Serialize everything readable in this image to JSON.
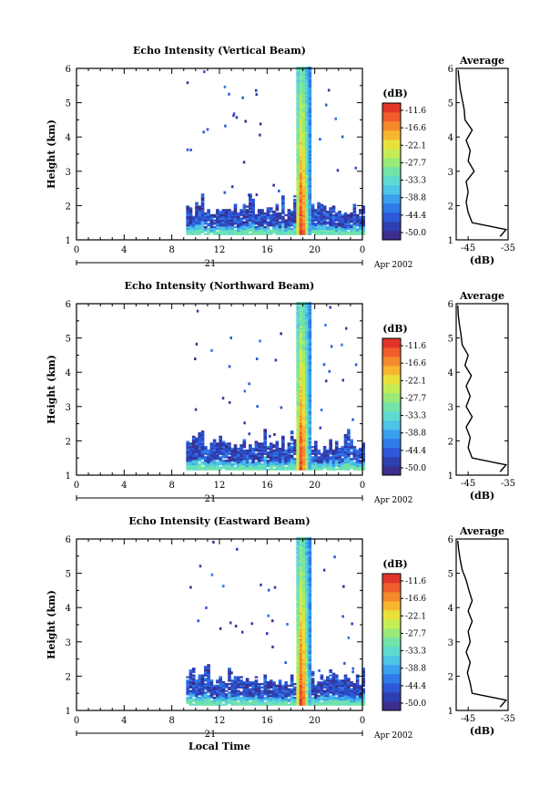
{
  "chart_data": [
    {
      "type": "heatmap",
      "title": "Echo Intensity (Vertical Beam)",
      "ylabel": "Height (km)",
      "xlabel": "",
      "x_ticks": [
        "0",
        "4",
        "8",
        "12",
        "16",
        "20",
        "0"
      ],
      "y_ticks": [
        "1",
        "2",
        "3",
        "4",
        "5",
        "6"
      ],
      "xlim": [
        0,
        24
      ],
      "ylim": [
        1,
        6
      ],
      "date_bar_label": "21",
      "date_label": "Apr 2002",
      "colorbar_title": "(dB)",
      "colorbar_ticks": [
        "-11.6",
        "-16.6",
        "-22.1",
        "-27.7",
        "-33.3",
        "-38.8",
        "-44.4",
        "-50.0"
      ],
      "data_start_hour": 9.2,
      "data_end_hour": 24,
      "layer_top_km": 1.85,
      "convective_cell_hours": [
        18.3,
        19.5
      ],
      "average_profile": {
        "title": "Average",
        "xlabel": "(dB)",
        "x_ticks": [
          "-45",
          "-35"
        ],
        "xlim": [
          -48,
          -35
        ],
        "heights": [
          1.1,
          1.3,
          1.5,
          1.8,
          2.1,
          2.4,
          2.7,
          3.0,
          3.3,
          3.6,
          3.9,
          4.2,
          4.5,
          4.8,
          5.1,
          5.4,
          5.7,
          5.95
        ],
        "values": [
          -37,
          -35.5,
          -44,
          -45,
          -45.5,
          -45,
          -45.5,
          -43.5,
          -45,
          -44.5,
          -45.5,
          -44,
          -45.8,
          -46,
          -46.5,
          -47,
          -47.3,
          -47.5
        ]
      }
    },
    {
      "type": "heatmap",
      "title": "Echo Intensity (Northward Beam)",
      "ylabel": "Height (km)",
      "xlabel": "",
      "x_ticks": [
        "0",
        "4",
        "8",
        "12",
        "16",
        "20",
        "0"
      ],
      "y_ticks": [
        "1",
        "2",
        "3",
        "4",
        "5",
        "6"
      ],
      "xlim": [
        0,
        24
      ],
      "ylim": [
        1,
        6
      ],
      "date_bar_label": "21",
      "date_label": "Apr 2002",
      "colorbar_title": "(dB)",
      "colorbar_ticks": [
        "-11.6",
        "-16.6",
        "-22.1",
        "-27.7",
        "-33.3",
        "-38.8",
        "-44.4",
        "-50.0"
      ],
      "data_start_hour": 9.2,
      "data_end_hour": 24,
      "layer_top_km": 1.85,
      "convective_cell_hours": [
        18.3,
        19.5
      ],
      "average_profile": {
        "title": "Average",
        "xlabel": "(dB)",
        "x_ticks": [
          "-45",
          "-35"
        ],
        "xlim": [
          -48,
          -35
        ],
        "heights": [
          1.1,
          1.3,
          1.5,
          1.8,
          2.1,
          2.4,
          2.7,
          3.0,
          3.3,
          3.6,
          3.9,
          4.2,
          4.5,
          4.8,
          5.1,
          5.4,
          5.7,
          5.95
        ],
        "values": [
          -37,
          -35.5,
          -44,
          -45,
          -44.5,
          -45.5,
          -44,
          -45.5,
          -44.5,
          -45.5,
          -44.2,
          -45.8,
          -45,
          -46.5,
          -46.8,
          -47.2,
          -47.5,
          -47.6
        ]
      }
    },
    {
      "type": "heatmap",
      "title": "Echo Intensity (Eastward Beam)",
      "ylabel": "Height (km)",
      "xlabel": "Local Time",
      "x_ticks": [
        "0",
        "4",
        "8",
        "12",
        "16",
        "20",
        "0"
      ],
      "y_ticks": [
        "1",
        "2",
        "3",
        "4",
        "5",
        "6"
      ],
      "xlim": [
        0,
        24
      ],
      "ylim": [
        1,
        6
      ],
      "date_bar_label": "21",
      "date_label": "Apr 2002",
      "colorbar_title": "(dB)",
      "colorbar_ticks": [
        "-11.6",
        "-16.6",
        "-22.1",
        "-27.7",
        "-33.3",
        "-38.8",
        "-44.4",
        "-50.0"
      ],
      "data_start_hour": 9.2,
      "data_end_hour": 24,
      "layer_top_km": 1.85,
      "convective_cell_hours": [
        18.3,
        19.5
      ],
      "average_profile": {
        "title": "Average",
        "xlabel": "(dB)",
        "x_ticks": [
          "-45",
          "-35"
        ],
        "xlim": [
          -48,
          -35
        ],
        "heights": [
          1.1,
          1.3,
          1.5,
          1.8,
          2.1,
          2.4,
          2.7,
          3.0,
          3.3,
          3.6,
          3.9,
          4.2,
          4.5,
          4.8,
          5.1,
          5.4,
          5.7,
          5.95
        ],
        "values": [
          -37,
          -35.5,
          -44,
          -44.5,
          -45.2,
          -44.5,
          -45.5,
          -44.5,
          -45,
          -44,
          -45,
          -44,
          -44.8,
          -45.5,
          -46.5,
          -47,
          -47.4,
          -47.6
        ]
      }
    }
  ],
  "colors": {
    "colorbar": [
      "#3b2e8c",
      "#2e3fb0",
      "#2d58d8",
      "#2f7ae8",
      "#3aa0ee",
      "#4ec4e6",
      "#5fdad0",
      "#72e3a8",
      "#9aea78",
      "#c6ec55",
      "#e9e03c",
      "#f6b632",
      "#f58a2c",
      "#ef5d2b",
      "#e2352a"
    ]
  }
}
